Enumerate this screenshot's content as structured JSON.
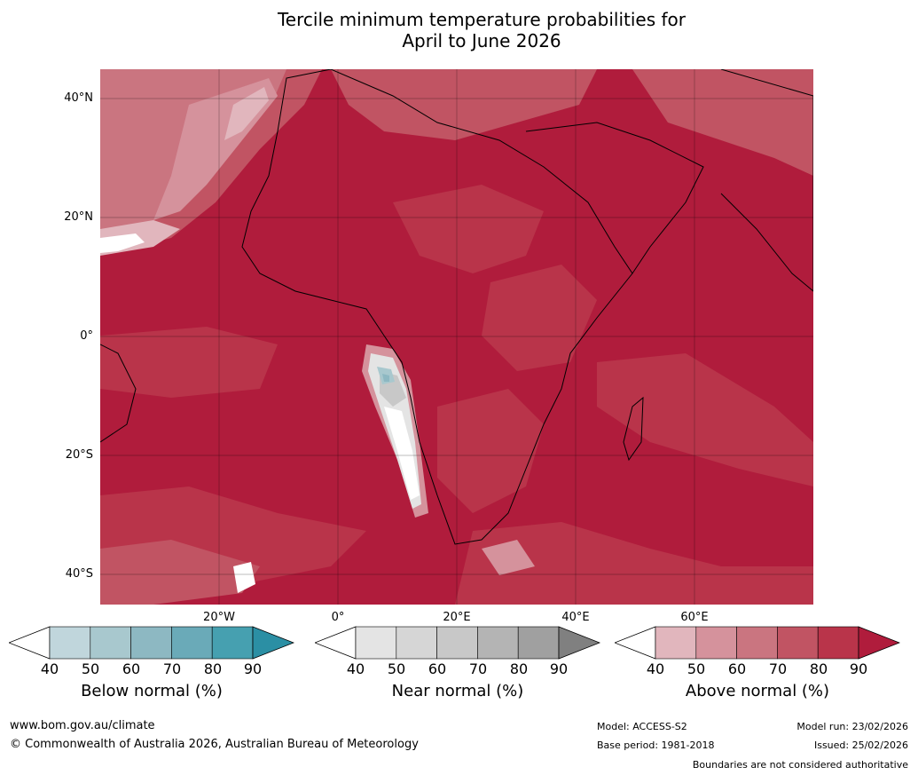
{
  "title": {
    "line1": "Tercile minimum temperature probabilities for",
    "line2": "April to June 2026"
  },
  "map": {
    "region": "Africa",
    "latitude_labels": [
      "40°N",
      "20°N",
      "0°",
      "20°S",
      "40°S"
    ],
    "longitude_labels": [
      "20°W",
      "0°",
      "20°E",
      "40°E",
      "60°E"
    ],
    "dominant_category": "Above normal",
    "dominant_level": "90"
  },
  "colorbars": [
    {
      "label": "Below normal (%)",
      "ticks": [
        "40",
        "50",
        "60",
        "70",
        "80",
        "90"
      ],
      "colors": [
        "#ffffff",
        "#c0d6dc",
        "#a8c8ce",
        "#8db8c2",
        "#6aaab8",
        "#46a0b0",
        "#2b8fa4"
      ]
    },
    {
      "label": "Near normal (%)",
      "ticks": [
        "40",
        "50",
        "60",
        "70",
        "80",
        "90"
      ],
      "colors": [
        "#ffffff",
        "#e4e4e4",
        "#d6d6d6",
        "#c8c8c8",
        "#b4b4b4",
        "#a0a0a0",
        "#808080"
      ]
    },
    {
      "label": "Above normal (%)",
      "ticks": [
        "40",
        "50",
        "60",
        "70",
        "80",
        "90"
      ],
      "colors": [
        "#ffffff",
        "#e1b6bd",
        "#d5929c",
        "#ca7580",
        "#c15463",
        "#b9344a",
        "#b01c3c"
      ]
    }
  ],
  "footer": {
    "website": "www.bom.gov.au/climate",
    "copyright": "© Commonwealth of Australia 2026, Australian Bureau of Meteorology",
    "model": "Model: ACCESS-S2",
    "base_period": "Base period: 1981-2018",
    "model_run": "Model run: 23/02/2026",
    "issued": "Issued: 25/02/2026",
    "disclaimer": "Boundaries are not considered authoritative"
  }
}
